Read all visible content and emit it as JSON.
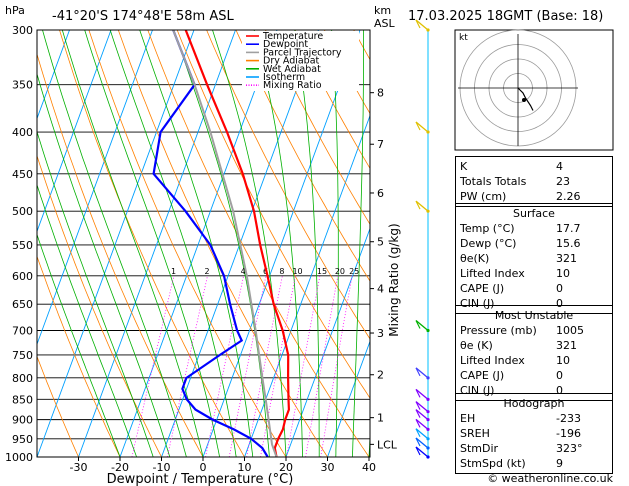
{
  "header": {
    "location": "-41°20'S  174°48'E  58m  ASL",
    "datetime": "17.03.2025  18GMT  (Base: 18)",
    "hpa_label": "hPa",
    "km_label": "km",
    "asl_label": "ASL",
    "mixing_ratio_label": "Mixing Ratio (g/kg)",
    "lcl_label": "LCL",
    "copyright": "© weatheronline.co.uk"
  },
  "chart_data": {
    "type": "line",
    "subtype": "skew-t log-p",
    "xlabel": "Dewpoint / Temperature (°C)",
    "ylabel": "hPa",
    "x_ticks": [
      -30,
      -20,
      -10,
      0,
      10,
      20,
      30,
      40
    ],
    "pressure_levels": [
      300,
      350,
      400,
      450,
      500,
      550,
      600,
      650,
      700,
      750,
      800,
      850,
      900,
      950,
      1000
    ],
    "height_km_ticks": [
      {
        "label": "8",
        "p": 358
      },
      {
        "label": "7",
        "p": 414
      },
      {
        "label": "6",
        "p": 475
      },
      {
        "label": "5",
        "p": 545
      },
      {
        "label": "4",
        "p": 622
      },
      {
        "label": "3",
        "p": 705
      },
      {
        "label": "2",
        "p": 793
      },
      {
        "label": "1",
        "p": 895
      },
      {
        "label": "LCL",
        "p": 965
      }
    ],
    "mixing_ratio_lines": [
      "1",
      "2",
      "4",
      "8",
      "6",
      "10",
      "15",
      "20",
      "25"
    ],
    "legend": [
      {
        "name": "Temperature",
        "color": "#ff0000"
      },
      {
        "name": "Dewpoint",
        "color": "#0000ff"
      },
      {
        "name": "Parcel Trajectory",
        "color": "#a0a0a0"
      },
      {
        "name": "Dry Adiabat",
        "color": "#ff8000"
      },
      {
        "name": "Wet Adiabat",
        "color": "#00b000"
      },
      {
        "name": "Isotherm",
        "color": "#00a0ff"
      },
      {
        "name": "Mixing Ratio",
        "color": "#ff00ff"
      }
    ],
    "series": [
      {
        "name": "Temperature",
        "color": "#ff0000",
        "points": [
          [
            1000,
            17.7
          ],
          [
            975,
            16.5
          ],
          [
            950,
            16.5
          ],
          [
            925,
            16.8
          ],
          [
            900,
            16.5
          ],
          [
            875,
            16.5
          ],
          [
            850,
            15.5
          ],
          [
            800,
            13.5
          ],
          [
            750,
            11.5
          ],
          [
            700,
            8
          ],
          [
            650,
            3.5
          ],
          [
            600,
            -0.5
          ],
          [
            550,
            -5
          ],
          [
            500,
            -9.5
          ],
          [
            450,
            -15.5
          ],
          [
            400,
            -23
          ],
          [
            350,
            -32
          ],
          [
            300,
            -42
          ]
        ]
      },
      {
        "name": "Dewpoint",
        "color": "#0000ff",
        "points": [
          [
            1000,
            15.6
          ],
          [
            975,
            13.5
          ],
          [
            950,
            10
          ],
          [
            925,
            5
          ],
          [
            900,
            -1
          ],
          [
            875,
            -6
          ],
          [
            850,
            -9
          ],
          [
            825,
            -11
          ],
          [
            800,
            -11
          ],
          [
            750,
            -5
          ],
          [
            720,
            -1
          ],
          [
            700,
            -3
          ],
          [
            650,
            -7
          ],
          [
            600,
            -11
          ],
          [
            550,
            -17
          ],
          [
            500,
            -26
          ],
          [
            450,
            -37
          ],
          [
            400,
            -39
          ],
          [
            350,
            -35
          ],
          [
            300,
            -45
          ]
        ]
      },
      {
        "name": "Parcel Trajectory",
        "color": "#a0a0a0",
        "points": [
          [
            1000,
            17.7
          ],
          [
            965,
            15.5
          ],
          [
            900,
            12.5
          ],
          [
            850,
            10
          ],
          [
            800,
            7.3
          ],
          [
            700,
            1.5
          ],
          [
            600,
            -5.5
          ],
          [
            500,
            -14.5
          ],
          [
            400,
            -27
          ],
          [
            350,
            -35
          ],
          [
            300,
            -45
          ]
        ]
      }
    ],
    "hodograph_rings": [
      10,
      20,
      30,
      40
    ],
    "hodograph_points": [
      [
        0,
        0
      ],
      [
        2,
        -2
      ],
      [
        3,
        -4
      ],
      [
        5,
        -7
      ],
      [
        6,
        -9
      ]
    ],
    "wind_barbs": [
      {
        "p": 300,
        "color": "#e0c000"
      },
      {
        "p": 400,
        "color": "#e0c000"
      },
      {
        "p": 500,
        "color": "#e0c000"
      },
      {
        "p": 700,
        "color": "#00b000"
      },
      {
        "p": 800,
        "color": "#4040ff"
      },
      {
        "p": 850,
        "color": "#8000ff"
      },
      {
        "p": 880,
        "color": "#8000ff"
      },
      {
        "p": 900,
        "color": "#8000ff"
      },
      {
        "p": 925,
        "color": "#8000ff"
      },
      {
        "p": 950,
        "color": "#00a0ff"
      },
      {
        "p": 975,
        "color": "#0060ff"
      },
      {
        "p": 1000,
        "color": "#0000ff"
      }
    ]
  },
  "indices": [
    {
      "label": "K",
      "value": "4"
    },
    {
      "label": "Totals Totals",
      "value": "23"
    },
    {
      "label": "PW (cm)",
      "value": "2.26"
    }
  ],
  "surface": {
    "title": "Surface",
    "rows": [
      {
        "label": "Temp (°C)",
        "value": "17.7"
      },
      {
        "label": "Dewp (°C)",
        "value": "15.6"
      },
      {
        "label": "θe(K)",
        "value": "321"
      },
      {
        "label": "Lifted Index",
        "value": "10"
      },
      {
        "label": "CAPE (J)",
        "value": "0"
      },
      {
        "label": "CIN (J)",
        "value": "0"
      }
    ]
  },
  "most_unstable": {
    "title": "Most Unstable",
    "rows": [
      {
        "label": "Pressure (mb)",
        "value": "1005"
      },
      {
        "label": "θe (K)",
        "value": "321"
      },
      {
        "label": "Lifted Index",
        "value": "10"
      },
      {
        "label": "CAPE (J)",
        "value": "0"
      },
      {
        "label": "CIN (J)",
        "value": "0"
      }
    ]
  },
  "hodograph": {
    "title": "Hodograph",
    "kt_label": "kt",
    "rows": [
      {
        "label": "EH",
        "value": "-233"
      },
      {
        "label": "SREH",
        "value": "-196"
      },
      {
        "label": "StmDir",
        "value": "323°"
      },
      {
        "label": "StmSpd (kt)",
        "value": "9"
      }
    ]
  }
}
